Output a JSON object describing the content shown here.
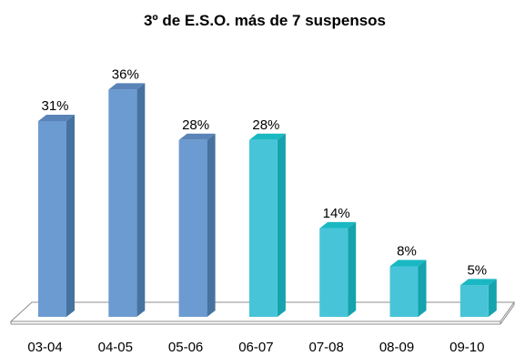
{
  "chart_data": {
    "type": "bar",
    "title": "3º de E.S.O.  más de 7 suspensos",
    "xlabel": "",
    "ylabel": "",
    "categories": [
      "03-04",
      "04-05",
      "05-06",
      "06-07",
      "07-08",
      "08-09",
      "09-10"
    ],
    "values": [
      31,
      36,
      28,
      28,
      14,
      8,
      5
    ],
    "value_labels": [
      "31%",
      "36%",
      "28%",
      "28%",
      "14%",
      "8%",
      "5%"
    ],
    "ylim": [
      0,
      40
    ],
    "grid": false,
    "legend": "none",
    "bar_colors": [
      "#6b9bd1",
      "#6b9bd1",
      "#6b9bd1",
      "#48c4d8",
      "#48c4d8",
      "#48c4d8",
      "#48c4d8"
    ],
    "colors": {
      "blue_front": "#6b9bd1",
      "blue_side": "#46729f",
      "blue_top": "#5a84b8",
      "cyan_front": "#48c4d8",
      "cyan_side": "#15a3ad",
      "cyan_top": "#19b8c2",
      "floor_stroke": "#8c8c8c"
    }
  }
}
